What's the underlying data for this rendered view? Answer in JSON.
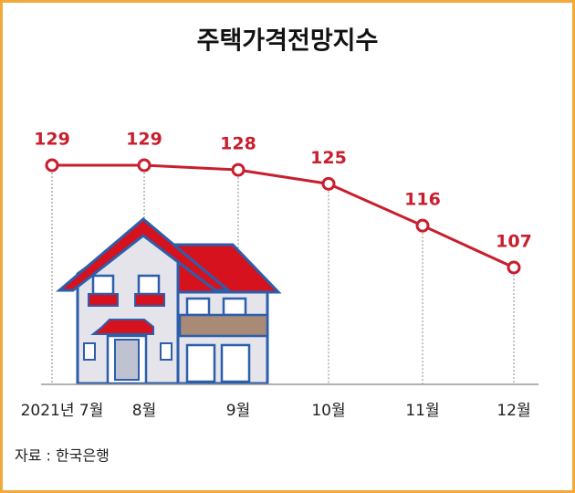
{
  "chart_data": {
    "type": "line",
    "title": "주택가격전망지수",
    "categories": [
      "2021년 7월",
      "8월",
      "9월",
      "10월",
      "11월",
      "12월"
    ],
    "values": [
      129,
      129,
      128,
      125,
      116,
      107
    ],
    "color": "#c81e2d",
    "source": "자료 : 한국은행"
  }
}
